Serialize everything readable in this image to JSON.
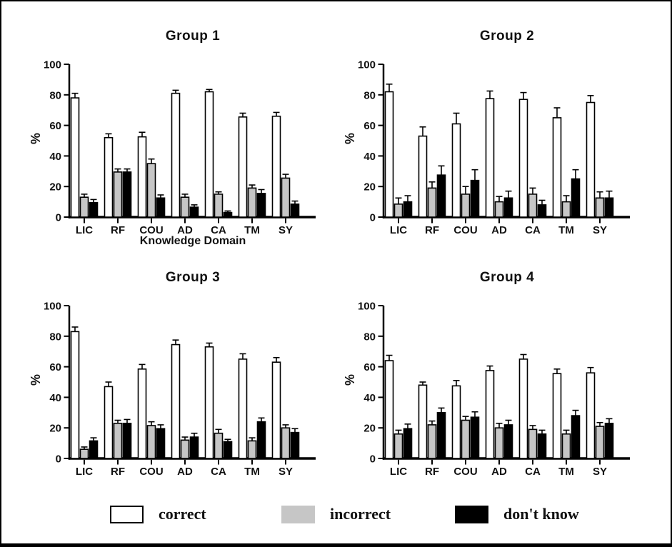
{
  "page": {
    "background": "#ffffff",
    "frame_border": "#000000"
  },
  "colors": {
    "correct": "#ffffff",
    "incorrect": "#c6c6c6",
    "dont_know": "#000000",
    "axis": "#000000"
  },
  "legend": {
    "position": "bottom",
    "items": [
      {
        "label": "correct",
        "fill": "#ffffff",
        "border": true
      },
      {
        "label": "incorrect",
        "fill": "#c6c6c6",
        "border": false
      },
      {
        "label": "don't know",
        "fill": "#000000",
        "border": false
      }
    ]
  },
  "chart_data": [
    {
      "type": "bar",
      "title": "Group 1",
      "xlabel": "Knowledge Domain",
      "ylabel": "%",
      "ylim": [
        0,
        100
      ],
      "yticks": [
        0,
        20,
        40,
        60,
        80,
        100
      ],
      "grid": false,
      "categories": [
        "LIC",
        "RF",
        "COU",
        "AD",
        "CA",
        "TM",
        "SY"
      ],
      "series": [
        {
          "name": "correct",
          "values": [
            78,
            52,
            52.5,
            81,
            82,
            65.5,
            66
          ],
          "errors": [
            3,
            2.5,
            3,
            2,
            1.5,
            2.5,
            2.5
          ]
        },
        {
          "name": "incorrect",
          "values": [
            13,
            29.5,
            35,
            13,
            15,
            19,
            25.5
          ],
          "errors": [
            2,
            2,
            3,
            2,
            1.5,
            2,
            2.5
          ]
        },
        {
          "name": "don't know",
          "values": [
            9.5,
            29.5,
            12.5,
            6.5,
            3,
            15.5,
            8.5
          ],
          "errors": [
            2,
            2,
            2,
            1.5,
            1,
            2.5,
            2
          ]
        }
      ]
    },
    {
      "type": "bar",
      "title": "Group 2",
      "xlabel": "",
      "ylabel": "%",
      "ylim": [
        0,
        100
      ],
      "yticks": [
        0,
        20,
        40,
        60,
        80,
        100
      ],
      "grid": false,
      "categories": [
        "LIC",
        "RF",
        "COU",
        "AD",
        "CA",
        "TM",
        "SY"
      ],
      "series": [
        {
          "name": "correct",
          "values": [
            82,
            53,
            61,
            77.5,
            77,
            65,
            75
          ],
          "errors": [
            5,
            6,
            7,
            5,
            4.5,
            6.5,
            4.5
          ]
        },
        {
          "name": "incorrect",
          "values": [
            8.5,
            19,
            15,
            10,
            15,
            10,
            12.5
          ],
          "errors": [
            4,
            4,
            5,
            3.5,
            4,
            4,
            4
          ]
        },
        {
          "name": "don't know",
          "values": [
            10,
            27.5,
            24,
            12.5,
            8,
            25,
            12.5
          ],
          "errors": [
            4,
            6,
            7,
            4.5,
            3,
            6,
            4.5
          ]
        }
      ]
    },
    {
      "type": "bar",
      "title": "Group 3",
      "xlabel": "",
      "ylabel": "%",
      "ylim": [
        0,
        100
      ],
      "yticks": [
        0,
        20,
        40,
        60,
        80,
        100
      ],
      "grid": false,
      "categories": [
        "LIC",
        "RF",
        "COU",
        "AD",
        "CA",
        "TM",
        "SY"
      ],
      "series": [
        {
          "name": "correct",
          "values": [
            83,
            47,
            58.5,
            74.5,
            73,
            65,
            63
          ],
          "errors": [
            3,
            3,
            3,
            3,
            2.5,
            3.5,
            3
          ]
        },
        {
          "name": "incorrect",
          "values": [
            6,
            23,
            21.5,
            12,
            16.5,
            11.5,
            20
          ],
          "errors": [
            1.5,
            2,
            2.5,
            2,
            2.5,
            2,
            2
          ]
        },
        {
          "name": "don't know",
          "values": [
            11.5,
            23,
            19.5,
            14,
            11,
            24,
            17
          ],
          "errors": [
            2,
            2.5,
            2.5,
            2.5,
            1.5,
            2.5,
            2.5
          ]
        }
      ]
    },
    {
      "type": "bar",
      "title": "Group 4",
      "xlabel": "",
      "ylabel": "%",
      "ylim": [
        0,
        100
      ],
      "yticks": [
        0,
        20,
        40,
        60,
        80,
        100
      ],
      "grid": false,
      "categories": [
        "LIC",
        "RF",
        "COU",
        "AD",
        "CA",
        "TM",
        "SY"
      ],
      "series": [
        {
          "name": "correct",
          "values": [
            64,
            48,
            47.5,
            57.5,
            65,
            55.5,
            56
          ],
          "errors": [
            3.5,
            2,
            3.5,
            3,
            3,
            3,
            3.5
          ]
        },
        {
          "name": "incorrect",
          "values": [
            16,
            22,
            25,
            20,
            19,
            16,
            21
          ],
          "errors": [
            2.5,
            2.5,
            2.5,
            3,
            2.5,
            2.5,
            2.5
          ]
        },
        {
          "name": "don't know",
          "values": [
            19.5,
            30,
            27,
            22,
            16,
            28,
            23
          ],
          "errors": [
            3,
            3,
            3.5,
            3,
            2.5,
            3.5,
            3
          ]
        }
      ]
    }
  ]
}
